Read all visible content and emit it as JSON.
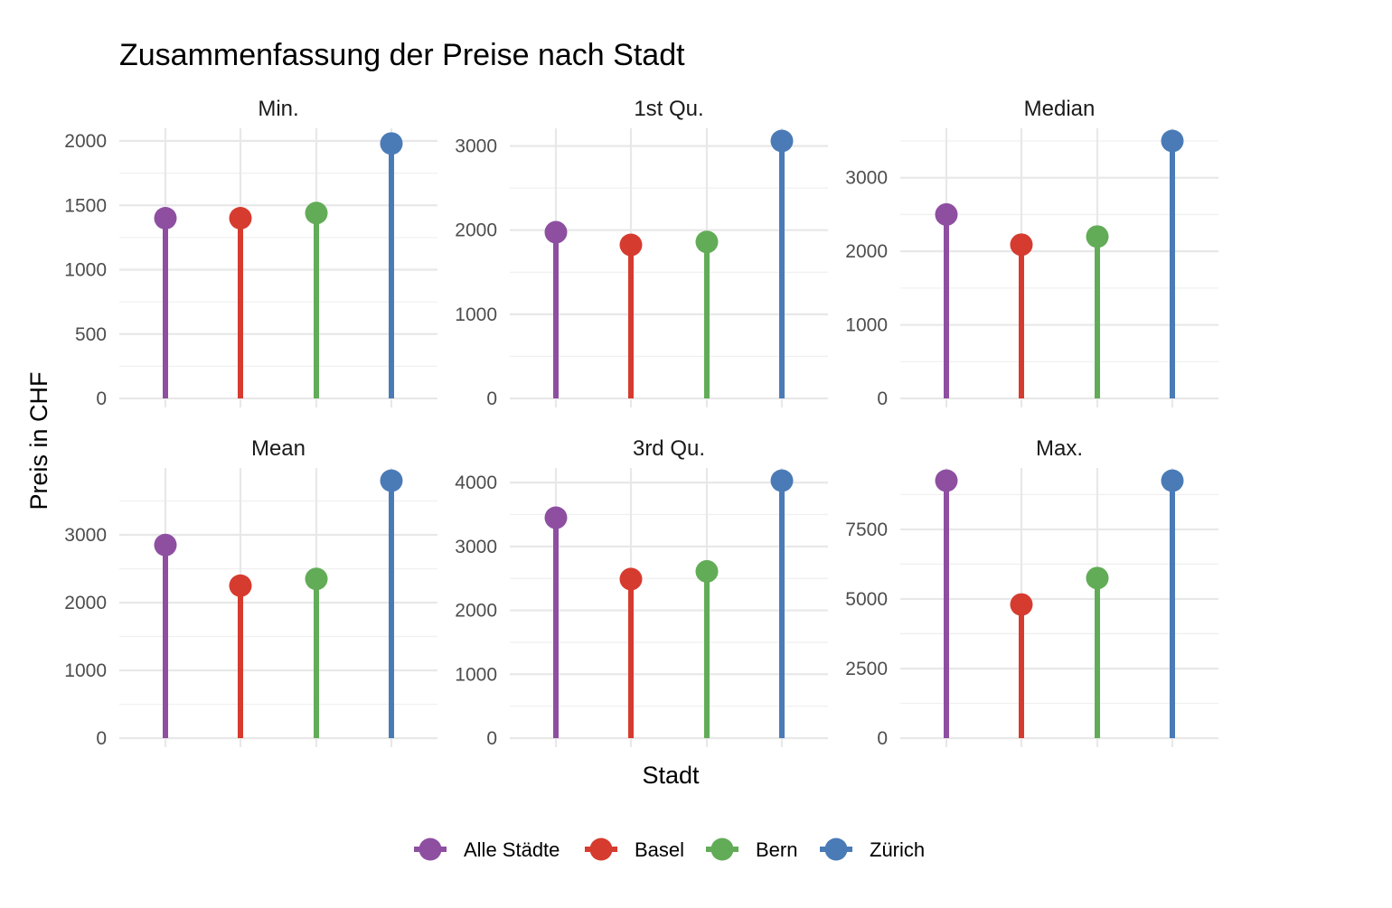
{
  "chart_data": {
    "type": "lollipop",
    "title": "Zusammenfassung der Preise nach Stadt",
    "xlabel": "Stadt",
    "ylabel": "Preis in CHF",
    "categories": [
      "Alle Städte",
      "Basel",
      "Bern",
      "Zürich"
    ],
    "colors": {
      "Alle Städte": "#8E4FA1",
      "Basel": "#D63B2F",
      "Bern": "#62AC57",
      "Zürich": "#4A7BB7"
    },
    "grid": true,
    "legend_position": "bottom",
    "facets": [
      {
        "name": "Min.",
        "values": [
          1400,
          1400,
          1440,
          1980
        ],
        "ylim": [
          0,
          2000
        ],
        "ticks": [
          0,
          500,
          1000,
          1500,
          2000
        ],
        "tick_labels": [
          "0",
          "500",
          "1000",
          "1500",
          "2000"
        ]
      },
      {
        "name": "1st Qu.",
        "values": [
          1975,
          1825,
          1860,
          3060
        ],
        "ylim": [
          0,
          3060
        ],
        "ticks": [
          0,
          1000,
          2000,
          3000
        ],
        "tick_labels": [
          "0",
          "1000",
          "2000",
          "3000"
        ]
      },
      {
        "name": "Median",
        "values": [
          2500,
          2090,
          2200,
          3500
        ],
        "ylim": [
          0,
          3500
        ],
        "ticks": [
          0,
          1000,
          2000,
          3000
        ],
        "tick_labels": [
          "0",
          "1000",
          "2000",
          "3000"
        ]
      },
      {
        "name": "Mean",
        "values": [
          2850,
          2250,
          2350,
          3800
        ],
        "ylim": [
          0,
          3800
        ],
        "ticks": [
          0,
          1000,
          2000,
          3000
        ],
        "tick_labels": [
          "0",
          "1000",
          "2000",
          "3000"
        ]
      },
      {
        "name": "3rd Qu.",
        "values": [
          3450,
          2490,
          2610,
          4030
        ],
        "ylim": [
          0,
          4030
        ],
        "ticks": [
          0,
          1000,
          2000,
          3000,
          4000
        ],
        "tick_labels": [
          "0",
          "1000",
          "2000",
          "3000",
          "4000"
        ]
      },
      {
        "name": "Max.",
        "values": [
          9250,
          4800,
          5750,
          9250
        ],
        "ylim": [
          0,
          9250
        ],
        "ticks": [
          0,
          2500,
          5000,
          7500
        ],
        "tick_labels": [
          "0",
          "2500",
          "5000",
          "7500"
        ]
      }
    ]
  }
}
